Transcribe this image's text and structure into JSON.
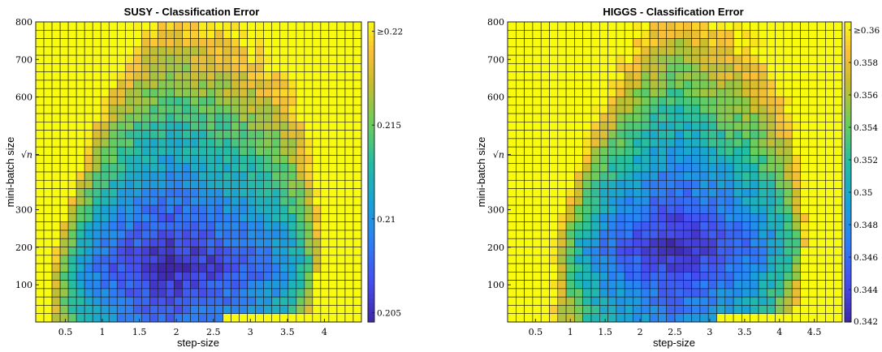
{
  "chart_data": [
    {
      "type": "heatmap",
      "title": "SUSY - Classification Error",
      "xlabel": "step-size",
      "ylabel": "mini-batch size",
      "x_ticks": [
        "0.5",
        "1",
        "1.5",
        "2",
        "2.5",
        "3",
        "3.5",
        "4"
      ],
      "x_tick_values": [
        0.5,
        1,
        1.5,
        2,
        2.5,
        3,
        3.5,
        4
      ],
      "xlim": [
        0.1,
        4.5
      ],
      "y_ticks": [
        "100",
        "200",
        "300",
        "√n",
        "600",
        "700",
        "800"
      ],
      "y_tick_values": [
        100,
        200,
        300,
        447,
        600,
        700,
        800
      ],
      "ylim": [
        1,
        800
      ],
      "grid_cols": 40,
      "grid_rows": 36,
      "colorbar_ticks": [
        "0.205",
        "0.21",
        "0.215",
        "≥0.22"
      ],
      "colorbar_tick_values": [
        0.205,
        0.21,
        0.215,
        0.22
      ],
      "clim": [
        0.2045,
        0.2205
      ],
      "pattern": {
        "valley_center": [
          1.9,
          150
        ],
        "valley_slope": 0.0011,
        "valley_y_scale": 0.0018,
        "x_edge_low": 0.7,
        "x_edge_high": 3.95,
        "edge_rise": 0.06,
        "base_error": 0.2045,
        "x_min": 0.1,
        "x_max": 4.5
      },
      "colormap": "parula"
    },
    {
      "type": "heatmap",
      "title": "HIGGS - Classification Error",
      "xlabel": "step-size",
      "ylabel": "mini-batch size",
      "x_ticks": [
        "0.5",
        "1",
        "1.5",
        "2",
        "2.5",
        "3",
        "3.5",
        "4",
        "4.5"
      ],
      "x_tick_values": [
        0.5,
        1,
        1.5,
        2,
        2.5,
        3,
        3.5,
        4,
        4.5
      ],
      "xlim": [
        0.1,
        4.9
      ],
      "y_ticks": [
        "100",
        "200",
        "300",
        "√n",
        "600",
        "700",
        "800"
      ],
      "y_tick_values": [
        100,
        200,
        300,
        447,
        600,
        700,
        800
      ],
      "ylim": [
        1,
        800
      ],
      "grid_cols": 40,
      "grid_rows": 36,
      "colorbar_ticks": [
        "0.342",
        "0.344",
        "0.346",
        "0.348",
        "0.35",
        "0.352",
        "0.354",
        "0.356",
        "0.358",
        "≥0.36"
      ],
      "colorbar_tick_values": [
        0.342,
        0.344,
        0.346,
        0.348,
        0.35,
        0.352,
        0.354,
        0.356,
        0.358,
        0.36
      ],
      "clim": [
        0.342,
        0.3605
      ],
      "pattern": {
        "valley_center": [
          2.5,
          200
        ],
        "valley_slope": 0.0016,
        "valley_y_scale": 0.0022,
        "x_edge_low": 1.05,
        "x_edge_high": 4.4,
        "edge_rise": 0.07,
        "base_error": 0.342,
        "x_min": 0.1,
        "x_max": 4.9
      },
      "colormap": "parula"
    }
  ]
}
